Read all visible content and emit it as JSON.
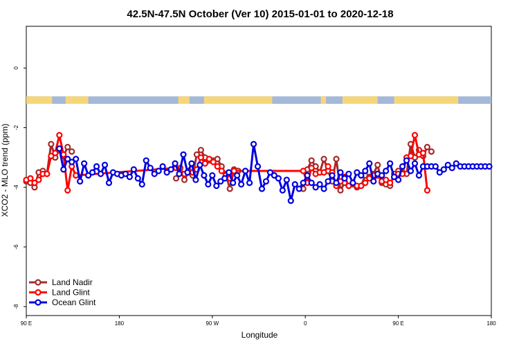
{
  "chart_data": {
    "type": "line",
    "title": "42.5N-47.5N October (Ver 10)   2015-01-01 to 2020-12-18",
    "xlabel": "Longitude",
    "ylabel": "XCO2 - MLO trend (ppm)",
    "xlim": [
      90,
      540
    ],
    "ylim": [
      -8.3,
      1.4
    ],
    "x_ticks": [
      {
        "value": 90,
        "label": "90 E"
      },
      {
        "value": 180,
        "label": "180"
      },
      {
        "value": 270,
        "label": "90 W"
      },
      {
        "value": 360,
        "label": "0"
      },
      {
        "value": 450,
        "label": "90 E"
      },
      {
        "value": 540,
        "label": "180"
      }
    ],
    "y_ticks": [
      {
        "value": 0,
        "label": "0"
      },
      {
        "value": -2,
        "label": "-2"
      },
      {
        "value": -4,
        "label": "-4"
      },
      {
        "value": -6,
        "label": "-6"
      },
      {
        "value": -8,
        "label": "-8"
      }
    ],
    "legend_position": "bottom-left",
    "land_ocean_band": {
      "y_range": [
        -1.2,
        -0.95
      ],
      "land_color": "#f5d77a",
      "ocean_color": "#a4b8d8",
      "land_segments": [
        [
          90,
          100
        ],
        [
          100,
          115
        ],
        [
          128,
          150
        ],
        [
          237,
          248
        ],
        [
          262,
          328
        ],
        [
          375,
          380
        ],
        [
          396,
          430
        ],
        [
          446,
          508
        ]
      ]
    },
    "series": [
      {
        "name": "Land Nadir",
        "color": "#a52a2a",
        "x": [
          90,
          94,
          98,
          102,
          106,
          110,
          114,
          118,
          122,
          126,
          130,
          134,
          147,
          235,
          239,
          243,
          247,
          251,
          255,
          259,
          263,
          267,
          271,
          275,
          279,
          283,
          287,
          291,
          295,
          299,
          303,
          358,
          362,
          366,
          370,
          374,
          378,
          382,
          386,
          390,
          394,
          398,
          402,
          406,
          410,
          414,
          418,
          422,
          426,
          430,
          434,
          438,
          442,
          446,
          450,
          454,
          458,
          462,
          466,
          470,
          474,
          478,
          482,
          486,
          490,
          494,
          498,
          502,
          506,
          510
        ],
        "y": [
          -3.8,
          -3.85,
          -4.0,
          -3.5,
          -3.45,
          -3.55,
          -2.55,
          -3.0,
          -2.75,
          -2.95,
          -2.65,
          -2.8,
          null,
          -3.7,
          -3.35,
          -3.75,
          -3.5,
          -3.6,
          -2.9,
          -2.75,
          -3.0,
          -3.1,
          -3.1,
          -3.05,
          -3.3,
          -3.55,
          -4.05,
          -3.4,
          -3.45,
          null,
          null,
          -4.05,
          -3.4,
          -3.1,
          -3.3,
          -3.5,
          -3.05,
          -3.45,
          -3.8,
          -3.05,
          -4.1,
          -3.85,
          -3.95,
          -3.9,
          -4.0,
          -3.95,
          -3.6,
          -3.65,
          -3.55,
          -3.25,
          -3.85,
          -3.9,
          -3.95,
          -3.55,
          -3.45,
          -3.5,
          -3.55,
          -2.55,
          -3.0,
          -2.75,
          -2.95,
          -2.65,
          -2.8,
          null,
          null,
          null,
          null,
          null,
          null,
          null
        ]
      },
      {
        "name": "Land Glint",
        "color": "#ff0000",
        "x": [
          90,
          94,
          98,
          102,
          106,
          110,
          114,
          118,
          122,
          126,
          130,
          134,
          138,
          235,
          239,
          243,
          247,
          251,
          255,
          259,
          263,
          267,
          271,
          275,
          279,
          283,
          287,
          291,
          358,
          362,
          366,
          370,
          374,
          378,
          382,
          386,
          390,
          394,
          398,
          402,
          406,
          410,
          414,
          418,
          422,
          426,
          430,
          434,
          438,
          442,
          446,
          450,
          454,
          458,
          462,
          466,
          470,
          474,
          478,
          482,
          486
        ],
        "y": [
          -3.75,
          -3.7,
          -3.85,
          -3.75,
          -3.55,
          -3.55,
          -2.95,
          -2.85,
          -2.25,
          -2.9,
          -4.1,
          -3.3,
          -3.6,
          -3.35,
          -3.5,
          -3.55,
          -3.45,
          -3.5,
          -3.4,
          -3.0,
          -3.2,
          -3.05,
          -3.15,
          -3.3,
          -3.45,
          -3.6,
          -3.7,
          -3.45,
          -3.45,
          -3.85,
          -3.35,
          -3.55,
          -3.5,
          -3.5,
          -3.3,
          -3.5,
          -3.95,
          -3.8,
          -3.65,
          -3.95,
          -3.85,
          -3.95,
          -3.95,
          -3.85,
          -3.7,
          -3.6,
          -3.6,
          -3.8,
          -3.75,
          -3.85,
          -3.65,
          -3.55,
          -3.55,
          -3.0,
          -2.95,
          -2.25,
          -2.9,
          -2.85,
          -4.1,
          null,
          null
        ]
      },
      {
        "name": "Ocean Glint",
        "color": "#0000dd",
        "x": [
          122,
          126,
          130,
          134,
          138,
          142,
          146,
          150,
          154,
          158,
          162,
          166,
          170,
          174,
          178,
          182,
          186,
          190,
          194,
          198,
          202,
          206,
          210,
          214,
          218,
          222,
          226,
          230,
          234,
          238,
          242,
          246,
          250,
          254,
          258,
          262,
          266,
          270,
          274,
          278,
          282,
          286,
          290,
          294,
          298,
          302,
          306,
          310,
          314,
          318,
          322,
          326,
          330,
          334,
          338,
          342,
          346,
          350,
          354,
          358,
          362,
          366,
          370,
          374,
          378,
          382,
          386,
          390,
          394,
          398,
          402,
          406,
          410,
          414,
          418,
          422,
          426,
          430,
          434,
          438,
          442,
          446,
          450,
          454,
          458,
          462,
          466,
          470,
          474,
          478,
          482,
          486,
          490,
          494,
          498,
          502,
          506,
          510,
          514,
          518,
          522,
          526,
          530,
          534,
          538
        ],
        "y": [
          -2.7,
          -3.4,
          -3.05,
          -3.15,
          -3.05,
          -3.8,
          -3.2,
          -3.6,
          -3.5,
          -3.3,
          -3.55,
          -3.25,
          -3.85,
          -3.5,
          -3.55,
          -3.6,
          -3.55,
          -3.65,
          -3.4,
          -3.7,
          -3.9,
          -3.1,
          -3.35,
          -3.55,
          -3.45,
          -3.3,
          -3.5,
          -3.4,
          -3.2,
          -3.55,
          -2.9,
          -3.5,
          -3.2,
          -3.75,
          -3.25,
          -3.6,
          -3.9,
          -3.6,
          -3.95,
          -3.8,
          -3.7,
          -3.5,
          -3.85,
          -3.6,
          -3.9,
          -3.45,
          -3.85,
          -2.55,
          -3.3,
          -4.05,
          -3.8,
          -3.5,
          -3.6,
          -3.7,
          -4.1,
          -3.75,
          -4.45,
          -3.9,
          -4.05,
          -3.85,
          -3.6,
          -3.85,
          -4.0,
          -3.9,
          -4.05,
          -3.8,
          -3.6,
          -3.85,
          -3.5,
          -3.7,
          -3.55,
          -3.85,
          -3.5,
          -3.6,
          -3.45,
          -3.2,
          -3.8,
          -3.55,
          -3.6,
          -3.45,
          -3.2,
          -3.65,
          -3.75,
          -3.3,
          -3.1,
          -3.45,
          -3.2,
          -3.6,
          -3.3,
          -3.3,
          -3.3,
          -3.3,
          -3.5,
          -3.4,
          -3.25,
          -3.35,
          -3.2,
          -3.3,
          -3.3,
          -3.3,
          -3.3,
          -3.3,
          -3.3,
          -3.3,
          -3.3
        ],
        "x_display_cutoff": [
          [
            122,
            146
          ],
          [
            146,
            302
          ],
          [
            302,
            402
          ],
          [
            402,
            540
          ]
        ]
      }
    ]
  }
}
